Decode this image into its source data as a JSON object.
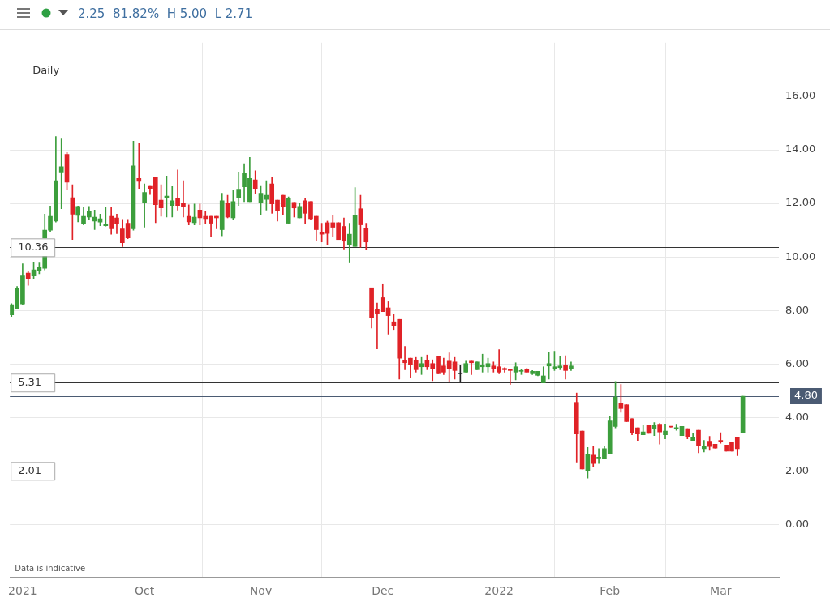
{
  "chart_data": {
    "type": "candlestick",
    "subtitle": "2.25  81.82%  H 5.00  L 2.71",
    "categories": [
      null,
      null,
      "2021",
      null,
      null,
      null,
      null,
      null,
      null,
      null,
      null,
      null,
      null,
      null,
      null,
      null,
      null,
      null,
      null,
      null,
      null,
      null,
      null,
      null,
      "Oct",
      null,
      null,
      null,
      null,
      null,
      null,
      null,
      null,
      null,
      null,
      null,
      null,
      null,
      null,
      null,
      null,
      null,
      null,
      null,
      null,
      "Nov",
      null,
      null,
      null,
      null,
      null,
      null,
      null,
      null,
      null,
      null,
      null,
      null,
      null,
      null,
      null,
      null,
      null,
      null,
      null,
      null,
      null,
      "Dec",
      null,
      null,
      null,
      null,
      null,
      null,
      null,
      null,
      null,
      null,
      null,
      null,
      null,
      null,
      null,
      null,
      null,
      null,
      null,
      null,
      "2022",
      null,
      null,
      null,
      null,
      null,
      null,
      null,
      null,
      null,
      null,
      null,
      null,
      null,
      null,
      null,
      null,
      null,
      null,
      null,
      "Feb",
      null,
      null,
      null,
      null,
      null,
      null,
      null,
      null,
      null,
      null,
      null,
      null,
      null,
      null,
      null,
      null,
      null,
      null,
      null,
      "Mar",
      null,
      null,
      null,
      null
    ],
    "ohlc": [
      [
        7.84,
        8.26,
        7.78,
        8.22
      ],
      [
        8.07,
        8.9,
        8.05,
        8.85
      ],
      [
        8.25,
        9.75,
        8.2,
        9.29
      ],
      [
        9.4,
        9.45,
        8.94,
        9.2
      ],
      [
        9.29,
        9.81,
        9.17,
        9.52
      ],
      [
        9.49,
        9.78,
        9.37,
        9.61
      ],
      [
        9.58,
        11.6,
        9.52,
        11.0
      ],
      [
        11.0,
        11.9,
        10.95,
        11.52
      ],
      [
        11.34,
        14.5,
        11.3,
        12.85
      ],
      [
        13.17,
        14.44,
        11.8,
        13.37
      ],
      [
        13.83,
        13.9,
        12.53,
        12.79
      ],
      [
        12.21,
        12.7,
        10.65,
        11.6
      ],
      [
        11.55,
        11.9,
        11.31,
        11.89
      ],
      [
        11.26,
        11.86,
        11.2,
        11.52
      ],
      [
        11.49,
        11.89,
        11.4,
        11.69
      ],
      [
        11.34,
        11.75,
        11.02,
        11.49
      ],
      [
        11.3,
        11.6,
        11.17,
        11.43
      ],
      [
        11.17,
        11.86,
        11.15,
        11.23
      ],
      [
        11.52,
        11.86,
        10.85,
        11.05
      ],
      [
        11.46,
        11.6,
        10.87,
        11.23
      ],
      [
        11.05,
        11.4,
        10.39,
        10.53
      ],
      [
        11.26,
        11.4,
        10.68,
        10.71
      ],
      [
        11.05,
        14.32,
        11.0,
        13.4
      ],
      [
        12.93,
        14.26,
        12.56,
        12.82
      ],
      [
        12.04,
        12.73,
        11.11,
        12.41
      ],
      [
        12.67,
        12.67,
        12.33,
        12.56
      ],
      [
        12.99,
        12.99,
        11.28,
        11.95
      ],
      [
        12.12,
        12.7,
        11.52,
        11.83
      ],
      [
        12.21,
        13.02,
        11.49,
        12.27
      ],
      [
        11.92,
        12.64,
        11.49,
        12.1
      ],
      [
        12.18,
        13.25,
        11.75,
        11.92
      ],
      [
        12.01,
        12.85,
        11.49,
        11.89
      ],
      [
        11.52,
        11.95,
        11.2,
        11.31
      ],
      [
        11.28,
        11.98,
        11.2,
        11.49
      ],
      [
        11.75,
        11.98,
        11.2,
        11.46
      ],
      [
        11.52,
        11.69,
        11.26,
        11.43
      ],
      [
        11.52,
        11.52,
        10.74,
        11.26
      ],
      [
        11.52,
        11.52,
        11.05,
        11.46
      ],
      [
        11.02,
        12.38,
        10.79,
        12.1
      ],
      [
        12.01,
        12.3,
        11.46,
        11.49
      ],
      [
        11.46,
        12.5,
        11.4,
        12.07
      ],
      [
        12.21,
        13.17,
        11.92,
        12.53
      ],
      [
        12.62,
        13.48,
        12.07,
        13.14
      ],
      [
        12.07,
        13.72,
        12.07,
        12.93
      ],
      [
        12.88,
        13.22,
        12.38,
        12.56
      ],
      [
        12.01,
        12.67,
        11.57,
        12.38
      ],
      [
        12.15,
        12.85,
        11.75,
        12.3
      ],
      [
        12.73,
        12.96,
        11.63,
        11.98
      ],
      [
        12.12,
        12.12,
        11.34,
        11.72
      ],
      [
        12.3,
        12.3,
        11.57,
        11.89
      ],
      [
        11.26,
        12.24,
        11.26,
        12.18
      ],
      [
        12.04,
        12.04,
        11.49,
        11.83
      ],
      [
        11.46,
        12.01,
        11.46,
        11.89
      ],
      [
        12.1,
        12.18,
        11.26,
        11.63
      ],
      [
        12.07,
        12.07,
        11.4,
        11.43
      ],
      [
        11.52,
        11.52,
        10.62,
        11.02
      ],
      [
        10.91,
        11.26,
        10.56,
        10.85
      ],
      [
        11.28,
        11.34,
        10.45,
        10.88
      ],
      [
        11.28,
        11.57,
        10.76,
        11.11
      ],
      [
        11.28,
        11.28,
        10.65,
        10.65
      ],
      [
        11.14,
        11.46,
        10.3,
        10.59
      ],
      [
        10.45,
        11.26,
        9.78,
        10.85
      ],
      [
        10.39,
        12.59,
        10.39,
        11.55
      ],
      [
        11.8,
        12.3,
        10.36,
        11.2
      ],
      [
        11.08,
        11.26,
        10.27,
        10.56
      ],
      [
        8.85,
        8.85,
        7.35,
        7.73
      ],
      [
        8.04,
        8.28,
        6.57,
        7.9
      ],
      [
        8.48,
        9.0,
        7.96,
        7.96
      ],
      [
        8.1,
        8.33,
        7.12,
        7.81
      ],
      [
        7.58,
        7.87,
        7.29,
        7.44
      ],
      [
        7.67,
        7.67,
        5.44,
        6.22
      ],
      [
        6.13,
        6.66,
        5.79,
        6.05
      ],
      [
        6.22,
        6.22,
        5.5,
        5.99
      ],
      [
        6.13,
        6.25,
        5.7,
        5.79
      ],
      [
        5.9,
        6.25,
        5.61,
        6.02
      ],
      [
        6.13,
        6.34,
        5.79,
        5.9
      ],
      [
        6.02,
        6.16,
        5.38,
        5.82
      ],
      [
        6.28,
        6.28,
        5.64,
        5.64
      ],
      [
        5.93,
        6.22,
        5.61,
        5.7
      ],
      [
        6.11,
        6.42,
        5.35,
        5.82
      ],
      [
        6.08,
        6.25,
        5.44,
        5.76
      ],
      [
        5.67,
        5.96,
        5.35,
        5.67
      ],
      [
        5.7,
        6.11,
        5.7,
        6.02
      ],
      [
        6.11,
        6.11,
        5.61,
        6.05
      ],
      [
        5.79,
        6.08,
        5.79,
        6.08
      ],
      [
        5.9,
        6.37,
        5.7,
        5.96
      ],
      [
        5.9,
        6.22,
        5.7,
        6.02
      ],
      [
        5.93,
        6.08,
        5.7,
        5.82
      ],
      [
        5.9,
        6.54,
        5.64,
        5.7
      ],
      [
        5.84,
        5.87,
        5.7,
        5.79
      ],
      [
        5.82,
        5.82,
        5.24,
        5.76
      ],
      [
        5.7,
        6.05,
        5.41,
        5.9
      ],
      [
        5.73,
        5.82,
        5.61,
        5.76
      ],
      [
        5.82,
        5.84,
        5.7,
        5.7
      ],
      [
        5.64,
        5.76,
        5.61,
        5.73
      ],
      [
        5.58,
        5.73,
        5.56,
        5.73
      ],
      [
        5.3,
        5.9,
        5.3,
        5.56
      ],
      [
        5.93,
        6.45,
        5.44,
        6.02
      ],
      [
        5.84,
        6.48,
        5.76,
        5.9
      ],
      [
        5.87,
        6.28,
        5.79,
        5.93
      ],
      [
        5.96,
        6.31,
        5.44,
        5.76
      ],
      [
        5.82,
        6.08,
        5.76,
        5.93
      ],
      [
        4.57,
        4.92,
        2.34,
        3.39
      ],
      [
        3.5,
        3.5,
        2.08,
        2.08
      ],
      [
        2.03,
        2.89,
        1.74,
        2.63
      ],
      [
        2.6,
        2.95,
        2.17,
        2.29
      ],
      [
        2.49,
        2.84,
        2.29,
        2.52
      ],
      [
        2.46,
        2.95,
        2.46,
        2.84
      ],
      [
        2.66,
        4.05,
        2.66,
        3.88
      ],
      [
        3.67,
        5.35,
        3.62,
        4.77
      ],
      [
        4.54,
        5.24,
        4.2,
        4.34
      ],
      [
        4.48,
        4.48,
        3.85,
        3.85
      ],
      [
        3.96,
        3.96,
        3.36,
        3.44
      ],
      [
        3.62,
        3.62,
        3.15,
        3.39
      ],
      [
        3.36,
        3.7,
        3.36,
        3.47
      ],
      [
        3.7,
        3.7,
        3.41,
        3.41
      ],
      [
        3.59,
        3.82,
        3.33,
        3.7
      ],
      [
        3.73,
        3.79,
        3.01,
        3.47
      ],
      [
        3.36,
        3.76,
        3.21,
        3.5
      ],
      [
        3.67,
        3.67,
        3.65,
        3.65
      ],
      [
        3.6,
        3.73,
        3.53,
        3.62
      ],
      [
        3.33,
        3.67,
        3.33,
        3.67
      ],
      [
        3.59,
        3.59,
        3.21,
        3.27
      ],
      [
        3.15,
        3.41,
        3.15,
        3.27
      ],
      [
        3.53,
        3.53,
        2.69,
        2.95
      ],
      [
        2.84,
        3.15,
        2.72,
        2.95
      ],
      [
        3.12,
        3.3,
        2.78,
        2.92
      ],
      [
        3.01,
        3.01,
        2.86,
        2.86
      ],
      [
        3.15,
        3.44,
        3.04,
        3.1
      ],
      [
        2.98,
        2.98,
        2.75,
        2.75
      ],
      [
        3.1,
        3.1,
        2.75,
        2.75
      ],
      [
        3.27,
        3.27,
        2.58,
        2.84
      ],
      [
        3.44,
        4.8,
        3.44,
        4.8
      ]
    ],
    "colors": [
      "#3c9e3c",
      "#3c9e3c",
      "#3c9e3c",
      "#e02227",
      "#3c9e3c",
      "#3c9e3c",
      "#3c9e3c",
      "#3c9e3c",
      "#3c9e3c",
      "#3c9e3c",
      "#e02227",
      "#e02227",
      "#3c9e3c",
      "#3c9e3c",
      "#3c9e3c",
      "#3c9e3c",
      "#3c9e3c",
      "#3c9e3c",
      "#e02227",
      "#e02227",
      "#e02227",
      "#e02227",
      "#3c9e3c",
      "#e02227",
      "#3c9e3c",
      "#e02227",
      "#e02227",
      "#e02227",
      "#3c9e3c",
      "#3c9e3c",
      "#e02227",
      "#e02227",
      "#e02227",
      "#3c9e3c",
      "#e02227",
      "#e02227",
      "#e02227",
      "#e02227",
      "#3c9e3c",
      "#e02227",
      "#3c9e3c",
      "#3c9e3c",
      "#3c9e3c",
      "#3c9e3c",
      "#e02227",
      "#3c9e3c",
      "#3c9e3c",
      "#e02227",
      "#e02227",
      "#e02227",
      "#3c9e3c",
      "#e02227",
      "#3c9e3c",
      "#e02227",
      "#e02227",
      "#e02227",
      "#e02227",
      "#e02227",
      "#e02227",
      "#e02227",
      "#e02227",
      "#3c9e3c",
      "#3c9e3c",
      "#e02227",
      "#e02227",
      "#e02227",
      "#e02227",
      "#e02227",
      "#e02227",
      "#e02227",
      "#e02227",
      "#e02227",
      "#e02227",
      "#e02227",
      "#3c9e3c",
      "#e02227",
      "#e02227",
      "#e02227",
      "#e02227",
      "#e02227",
      "#e02227",
      "#222222",
      "#3c9e3c",
      "#e02227",
      "#3c9e3c",
      "#3c9e3c",
      "#3c9e3c",
      "#e02227",
      "#e02227",
      "#e02227",
      "#e02227",
      "#3c9e3c",
      "#3c9e3c",
      "#e02227",
      "#3c9e3c",
      "#3c9e3c",
      "#3c9e3c",
      "#3c9e3c",
      "#3c9e3c",
      "#3c9e3c",
      "#e02227",
      "#3c9e3c",
      "#e02227",
      "#e02227",
      "#3c9e3c",
      "#e02227",
      "#3c9e3c",
      "#3c9e3c",
      "#3c9e3c",
      "#3c9e3c",
      "#e02227",
      "#e02227",
      "#e02227",
      "#e02227",
      "#3c9e3c",
      "#e02227",
      "#3c9e3c",
      "#e02227",
      "#3c9e3c",
      "#e02227",
      "#3c9e3c",
      "#3c9e3c",
      "#e02227",
      "#3c9e3c",
      "#e02227",
      "#3c9e3c",
      "#e02227",
      "#e02227",
      "#e02227",
      "#e02227",
      "#e02227",
      "#e02227",
      "#3c9e3c"
    ],
    "ylim": [
      -1.95,
      18
    ],
    "yticks": [
      {
        "value": 0,
        "label": "0.00"
      },
      {
        "value": 2,
        "label": "2.00"
      },
      {
        "value": 4,
        "label": "4.00"
      },
      {
        "value": 6,
        "label": "6.00"
      },
      {
        "value": 8,
        "label": "8.00"
      },
      {
        "value": 10,
        "label": "10.00"
      },
      {
        "value": 12,
        "label": "12.00"
      },
      {
        "value": 14,
        "label": "14.00"
      },
      {
        "value": 16,
        "label": "16.00"
      }
    ],
    "grid": true,
    "ref_lines": [
      {
        "axis": "y",
        "value": 10.36,
        "label": "10.36",
        "color": "#333333"
      },
      {
        "axis": "y",
        "value": 5.31,
        "label": "5.31",
        "color": "#333333"
      },
      {
        "axis": "y",
        "value": 2.01,
        "label": "2.01",
        "color": "#333333"
      },
      {
        "axis": "y",
        "value": 4.8,
        "label": "4.80",
        "color": "#4b5b73"
      }
    ],
    "annotations": [
      "Daily",
      "Data is indicative"
    ]
  }
}
